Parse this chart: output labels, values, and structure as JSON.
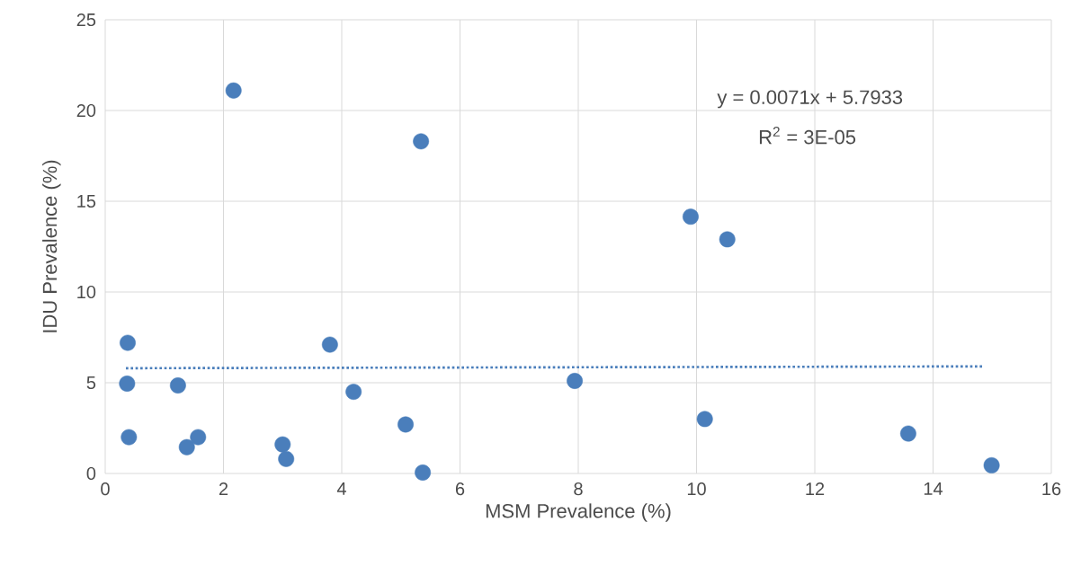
{
  "chart_data": {
    "type": "scatter",
    "xlabel": "MSM Prevalence (%)",
    "ylabel": "IDU Prevalence (%)",
    "xlim": [
      0,
      16
    ],
    "ylim": [
      0,
      25
    ],
    "xticks": [
      0,
      2,
      4,
      6,
      8,
      10,
      12,
      14,
      16
    ],
    "yticks": [
      0,
      5,
      10,
      15,
      20,
      25
    ],
    "grid": true,
    "series": [
      {
        "color": "#4a7ebb",
        "marker": "circle",
        "x": [
          0.38,
          0.37,
          0.4,
          1.23,
          1.38,
          1.57,
          2.17,
          3.0,
          3.06,
          3.8,
          4.2,
          5.08,
          5.34,
          5.37,
          7.94,
          9.9,
          10.14,
          10.52,
          13.58,
          14.99
        ],
        "values": [
          7.2,
          4.95,
          2.0,
          4.85,
          1.45,
          2.0,
          21.1,
          1.6,
          0.8,
          7.1,
          4.5,
          2.7,
          18.3,
          0.05,
          5.1,
          14.15,
          3.0,
          12.9,
          2.2,
          0.45
        ]
      },
      {
        "type": "line",
        "color": "#4a7ebb",
        "line_style": "dotted",
        "marker": "none",
        "x": [
          0.35,
          14.85
        ],
        "values": [
          5.8,
          5.9
        ]
      }
    ],
    "annotations": [
      "y = 0.0071x + 5.7933",
      "R$^{2}$ = 3E-05"
    ]
  }
}
